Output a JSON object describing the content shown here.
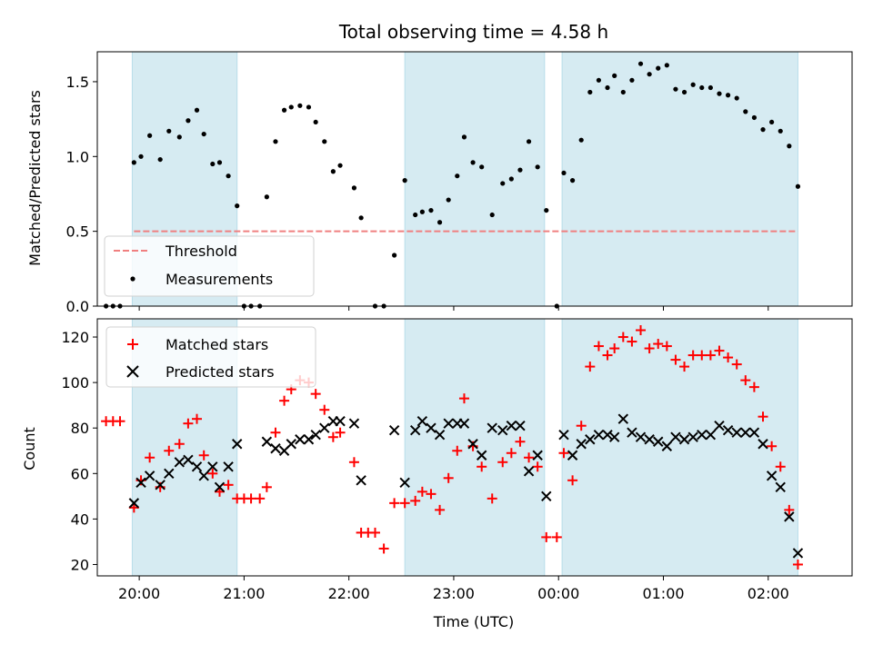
{
  "chart_data": [
    {
      "type": "scatter",
      "title": "Total observing time = 4.58 h",
      "xlabel": "",
      "ylabel": "Matched/Predicted stars",
      "xlim": [
        "19:36",
        "02:48"
      ],
      "ylim": [
        0,
        1.7
      ],
      "yticks": [
        "0.0",
        "0.5",
        "1.0",
        "1.5"
      ],
      "grid": false,
      "legend": "lower-left",
      "shaded_intervals": [
        [
          "19:56",
          "20:56"
        ],
        [
          "22:32",
          "23:52"
        ],
        [
          "00:02",
          "02:17"
        ]
      ],
      "threshold": {
        "name": "Threshold",
        "value": 0.5,
        "x_range": [
          "19:57",
          "02:17"
        ],
        "color": "#f08080"
      },
      "series": [
        {
          "name": "Measurements",
          "color": "#000000",
          "marker": "dot",
          "points": [
            [
              "19:41",
              0
            ],
            [
              "19:45",
              0
            ],
            [
              "19:49",
              0
            ],
            [
              "19:57",
              0.96
            ],
            [
              "20:01",
              1.0
            ],
            [
              "20:06",
              1.14
            ],
            [
              "20:12",
              0.98
            ],
            [
              "20:17",
              1.17
            ],
            [
              "20:23",
              1.13
            ],
            [
              "20:28",
              1.24
            ],
            [
              "20:33",
              1.31
            ],
            [
              "20:37",
              1.15
            ],
            [
              "20:42",
              0.95
            ],
            [
              "20:46",
              0.96
            ],
            [
              "20:51",
              0.87
            ],
            [
              "20:56",
              0.67
            ],
            [
              "21:00",
              0
            ],
            [
              "21:04",
              0
            ],
            [
              "21:09",
              0
            ],
            [
              "21:13",
              0.73
            ],
            [
              "21:18",
              1.1
            ],
            [
              "21:23",
              1.31
            ],
            [
              "21:27",
              1.33
            ],
            [
              "21:32",
              1.34
            ],
            [
              "21:37",
              1.33
            ],
            [
              "21:41",
              1.23
            ],
            [
              "21:46",
              1.1
            ],
            [
              "21:51",
              0.9
            ],
            [
              "21:55",
              0.94
            ],
            [
              "22:03",
              0.79
            ],
            [
              "22:07",
              0.59
            ],
            [
              "22:15",
              0
            ],
            [
              "22:20",
              0
            ],
            [
              "22:26",
              0.34
            ],
            [
              "22:32",
              0.84
            ],
            [
              "22:38",
              0.61
            ],
            [
              "22:42",
              0.63
            ],
            [
              "22:47",
              0.64
            ],
            [
              "22:52",
              0.56
            ],
            [
              "22:57",
              0.71
            ],
            [
              "23:02",
              0.87
            ],
            [
              "23:06",
              1.13
            ],
            [
              "23:11",
              0.96
            ],
            [
              "23:16",
              0.93
            ],
            [
              "23:22",
              0.61
            ],
            [
              "23:28",
              0.82
            ],
            [
              "23:33",
              0.85
            ],
            [
              "23:38",
              0.91
            ],
            [
              "23:43",
              1.1
            ],
            [
              "23:48",
              0.93
            ],
            [
              "23:53",
              0.64
            ],
            [
              "23:59",
              0
            ],
            [
              "00:03",
              0.89
            ],
            [
              "00:08",
              0.84
            ],
            [
              "00:13",
              1.11
            ],
            [
              "00:18",
              1.43
            ],
            [
              "00:23",
              1.51
            ],
            [
              "00:28",
              1.46
            ],
            [
              "00:32",
              1.54
            ],
            [
              "00:37",
              1.43
            ],
            [
              "00:42",
              1.51
            ],
            [
              "00:47",
              1.62
            ],
            [
              "00:52",
              1.55
            ],
            [
              "00:57",
              1.59
            ],
            [
              "01:02",
              1.61
            ],
            [
              "01:07",
              1.45
            ],
            [
              "01:12",
              1.43
            ],
            [
              "01:17",
              1.48
            ],
            [
              "01:22",
              1.46
            ],
            [
              "01:27",
              1.46
            ],
            [
              "01:32",
              1.42
            ],
            [
              "01:37",
              1.41
            ],
            [
              "01:42",
              1.39
            ],
            [
              "01:47",
              1.3
            ],
            [
              "01:52",
              1.26
            ],
            [
              "01:57",
              1.18
            ],
            [
              "02:02",
              1.23
            ],
            [
              "02:07",
              1.17
            ],
            [
              "02:12",
              1.07
            ],
            [
              "02:17",
              0.8
            ]
          ]
        }
      ]
    },
    {
      "type": "scatter",
      "title": "",
      "xlabel": "Time (UTC)",
      "ylabel": "Count",
      "xlim": [
        "19:36",
        "02:48"
      ],
      "ylim": [
        15,
        128
      ],
      "yticks": [
        "20",
        "40",
        "60",
        "80",
        "100",
        "120"
      ],
      "xticks": [
        "20:00",
        "21:00",
        "22:00",
        "23:00",
        "00:00",
        "01:00",
        "02:00"
      ],
      "grid": false,
      "legend": "top-left",
      "shaded_intervals": [
        [
          "19:56",
          "20:56"
        ],
        [
          "22:32",
          "23:52"
        ],
        [
          "00:02",
          "02:17"
        ]
      ],
      "series": [
        {
          "name": "Matched stars",
          "color": "#ff0000",
          "marker": "plus",
          "points": [
            [
              "19:41",
              83
            ],
            [
              "19:45",
              83
            ],
            [
              "19:49",
              83
            ],
            [
              "19:57",
              45
            ],
            [
              "20:01",
              57
            ],
            [
              "20:06",
              67
            ],
            [
              "20:12",
              54
            ],
            [
              "20:17",
              70
            ],
            [
              "20:23",
              73
            ],
            [
              "20:28",
              82
            ],
            [
              "20:33",
              84
            ],
            [
              "20:37",
              68
            ],
            [
              "20:42",
              60
            ],
            [
              "20:46",
              52
            ],
            [
              "20:51",
              55
            ],
            [
              "20:56",
              49
            ],
            [
              "21:00",
              49
            ],
            [
              "21:04",
              49
            ],
            [
              "21:09",
              49
            ],
            [
              "21:13",
              54
            ],
            [
              "21:18",
              78
            ],
            [
              "21:23",
              92
            ],
            [
              "21:27",
              97
            ],
            [
              "21:32",
              101
            ],
            [
              "21:37",
              100
            ],
            [
              "21:41",
              95
            ],
            [
              "21:46",
              88
            ],
            [
              "21:51",
              76
            ],
            [
              "21:55",
              78
            ],
            [
              "22:03",
              65
            ],
            [
              "22:07",
              34
            ],
            [
              "22:11",
              34
            ],
            [
              "22:15",
              34
            ],
            [
              "22:20",
              27
            ],
            [
              "22:26",
              47
            ],
            [
              "22:32",
              47
            ],
            [
              "22:38",
              48
            ],
            [
              "22:42",
              52
            ],
            [
              "22:47",
              51
            ],
            [
              "22:52",
              44
            ],
            [
              "22:57",
              58
            ],
            [
              "23:02",
              70
            ],
            [
              "23:06",
              93
            ],
            [
              "23:11",
              72
            ],
            [
              "23:16",
              63
            ],
            [
              "23:22",
              49
            ],
            [
              "23:28",
              65
            ],
            [
              "23:33",
              69
            ],
            [
              "23:38",
              74
            ],
            [
              "23:43",
              67
            ],
            [
              "23:48",
              63
            ],
            [
              "23:53",
              32
            ],
            [
              "23:59",
              32
            ],
            [
              "00:03",
              69
            ],
            [
              "00:08",
              57
            ],
            [
              "00:13",
              81
            ],
            [
              "00:18",
              107
            ],
            [
              "00:23",
              116
            ],
            [
              "00:28",
              112
            ],
            [
              "00:32",
              115
            ],
            [
              "00:37",
              120
            ],
            [
              "00:42",
              118
            ],
            [
              "00:47",
              123
            ],
            [
              "00:52",
              115
            ],
            [
              "00:57",
              117
            ],
            [
              "01:02",
              116
            ],
            [
              "01:07",
              110
            ],
            [
              "01:12",
              107
            ],
            [
              "01:17",
              112
            ],
            [
              "01:22",
              112
            ],
            [
              "01:27",
              112
            ],
            [
              "01:32",
              114
            ],
            [
              "01:37",
              111
            ],
            [
              "01:42",
              108
            ],
            [
              "01:47",
              101
            ],
            [
              "01:52",
              98
            ],
            [
              "01:57",
              85
            ],
            [
              "02:02",
              72
            ],
            [
              "02:07",
              63
            ],
            [
              "02:12",
              44
            ],
            [
              "02:17",
              20
            ]
          ]
        },
        {
          "name": "Predicted stars",
          "color": "#000000",
          "marker": "x",
          "points": [
            [
              "19:57",
              47
            ],
            [
              "20:01",
              56
            ],
            [
              "20:06",
              59
            ],
            [
              "20:12",
              55
            ],
            [
              "20:17",
              60
            ],
            [
              "20:23",
              65
            ],
            [
              "20:28",
              66
            ],
            [
              "20:33",
              63
            ],
            [
              "20:37",
              59
            ],
            [
              "20:42",
              63
            ],
            [
              "20:46",
              54
            ],
            [
              "20:51",
              63
            ],
            [
              "20:56",
              73
            ],
            [
              "21:13",
              74
            ],
            [
              "21:18",
              71
            ],
            [
              "21:23",
              70
            ],
            [
              "21:27",
              73
            ],
            [
              "21:32",
              75
            ],
            [
              "21:37",
              75
            ],
            [
              "21:41",
              77
            ],
            [
              "21:46",
              80
            ],
            [
              "21:51",
              83
            ],
            [
              "21:55",
              83
            ],
            [
              "22:03",
              82
            ],
            [
              "22:07",
              57
            ],
            [
              "22:26",
              79
            ],
            [
              "22:32",
              56
            ],
            [
              "22:38",
              79
            ],
            [
              "22:42",
              83
            ],
            [
              "22:47",
              80
            ],
            [
              "22:52",
              77
            ],
            [
              "22:57",
              82
            ],
            [
              "23:02",
              82
            ],
            [
              "23:06",
              82
            ],
            [
              "23:11",
              73
            ],
            [
              "23:16",
              68
            ],
            [
              "23:22",
              80
            ],
            [
              "23:28",
              79
            ],
            [
              "23:33",
              81
            ],
            [
              "23:38",
              81
            ],
            [
              "23:43",
              61
            ],
            [
              "23:48",
              68
            ],
            [
              "23:53",
              50
            ],
            [
              "00:03",
              77
            ],
            [
              "00:08",
              68
            ],
            [
              "00:13",
              73
            ],
            [
              "00:18",
              75
            ],
            [
              "00:23",
              77
            ],
            [
              "00:28",
              77
            ],
            [
              "00:32",
              76
            ],
            [
              "00:37",
              84
            ],
            [
              "00:42",
              78
            ],
            [
              "00:47",
              76
            ],
            [
              "00:52",
              75
            ],
            [
              "00:57",
              74
            ],
            [
              "01:02",
              72
            ],
            [
              "01:07",
              76
            ],
            [
              "01:12",
              75
            ],
            [
              "01:17",
              76
            ],
            [
              "01:22",
              77
            ],
            [
              "01:27",
              77
            ],
            [
              "01:32",
              81
            ],
            [
              "01:37",
              79
            ],
            [
              "01:42",
              78
            ],
            [
              "01:47",
              78
            ],
            [
              "01:52",
              78
            ],
            [
              "01:57",
              73
            ],
            [
              "02:02",
              59
            ],
            [
              "02:07",
              54
            ],
            [
              "02:12",
              41
            ],
            [
              "02:17",
              25
            ]
          ]
        }
      ]
    }
  ]
}
